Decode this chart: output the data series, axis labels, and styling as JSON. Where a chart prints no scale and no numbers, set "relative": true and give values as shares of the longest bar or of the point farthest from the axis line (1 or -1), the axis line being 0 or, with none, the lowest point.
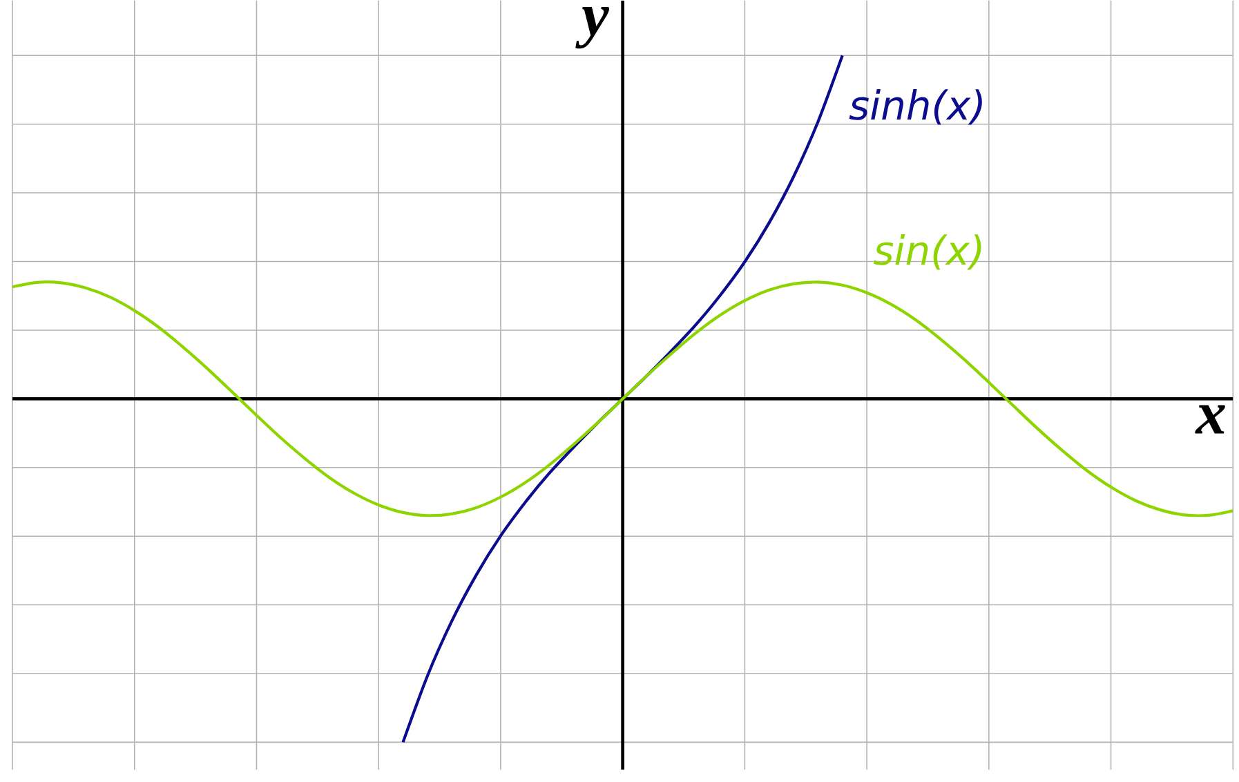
{
  "chart_data": {
    "type": "line",
    "relative": true,
    "xlabel": "x",
    "ylabel": "y",
    "grid": true,
    "tick_labels": false,
    "marker": "none",
    "line_style": "solid",
    "categories": [
      null,
      null,
      null,
      null,
      null,
      null,
      null,
      null,
      null,
      null,
      null,
      null,
      null,
      null,
      null,
      null,
      null,
      null,
      null,
      null,
      null,
      null,
      null,
      null,
      null,
      null,
      null,
      null,
      null,
      null,
      null,
      null,
      null,
      null,
      null,
      null,
      null,
      null,
      null,
      null,
      null,
      null,
      null,
      null,
      null,
      null,
      null,
      null,
      null,
      null,
      null
    ],
    "series": [
      {
        "name": "sinh(x)",
        "color": "#0c0c8e",
        "values": [
          null,
          null,
          null,
          null,
          null,
          null,
          null,
          null,
          null,
          null,
          null,
          null,
          null,
          null,
          null,
          null,
          -1,
          -0.807,
          -0.647,
          -0.513,
          -0.399,
          -0.302,
          -0.216,
          -0.14,
          -0.068,
          0,
          0.068,
          0.14,
          0.216,
          0.302,
          0.399,
          0.513,
          0.647,
          0.807,
          1,
          null,
          null,
          null,
          null,
          null,
          null,
          null,
          null,
          null,
          null,
          null,
          null,
          null,
          null,
          null,
          null
        ]
      },
      {
        "name": "sin(x)",
        "color": "#8ed400",
        "values": [
          0.326,
          0.339,
          0.338,
          0.323,
          0.296,
          0.257,
          0.208,
          0.15,
          0.087,
          0.02,
          -0.048,
          -0.114,
          -0.175,
          -0.23,
          -0.275,
          -0.309,
          -0.331,
          -0.34,
          -0.335,
          -0.317,
          -0.286,
          -0.244,
          -0.192,
          -0.132,
          -0.068,
          0,
          0.068,
          0.132,
          0.192,
          0.244,
          0.286,
          0.317,
          0.335,
          0.34,
          0.331,
          0.309,
          0.275,
          0.23,
          0.175,
          0.114,
          0.048,
          -0.02,
          -0.087,
          -0.15,
          -0.208,
          -0.257,
          -0.296,
          -0.323,
          -0.338,
          -0.339,
          -0.326
        ]
      }
    ]
  }
}
